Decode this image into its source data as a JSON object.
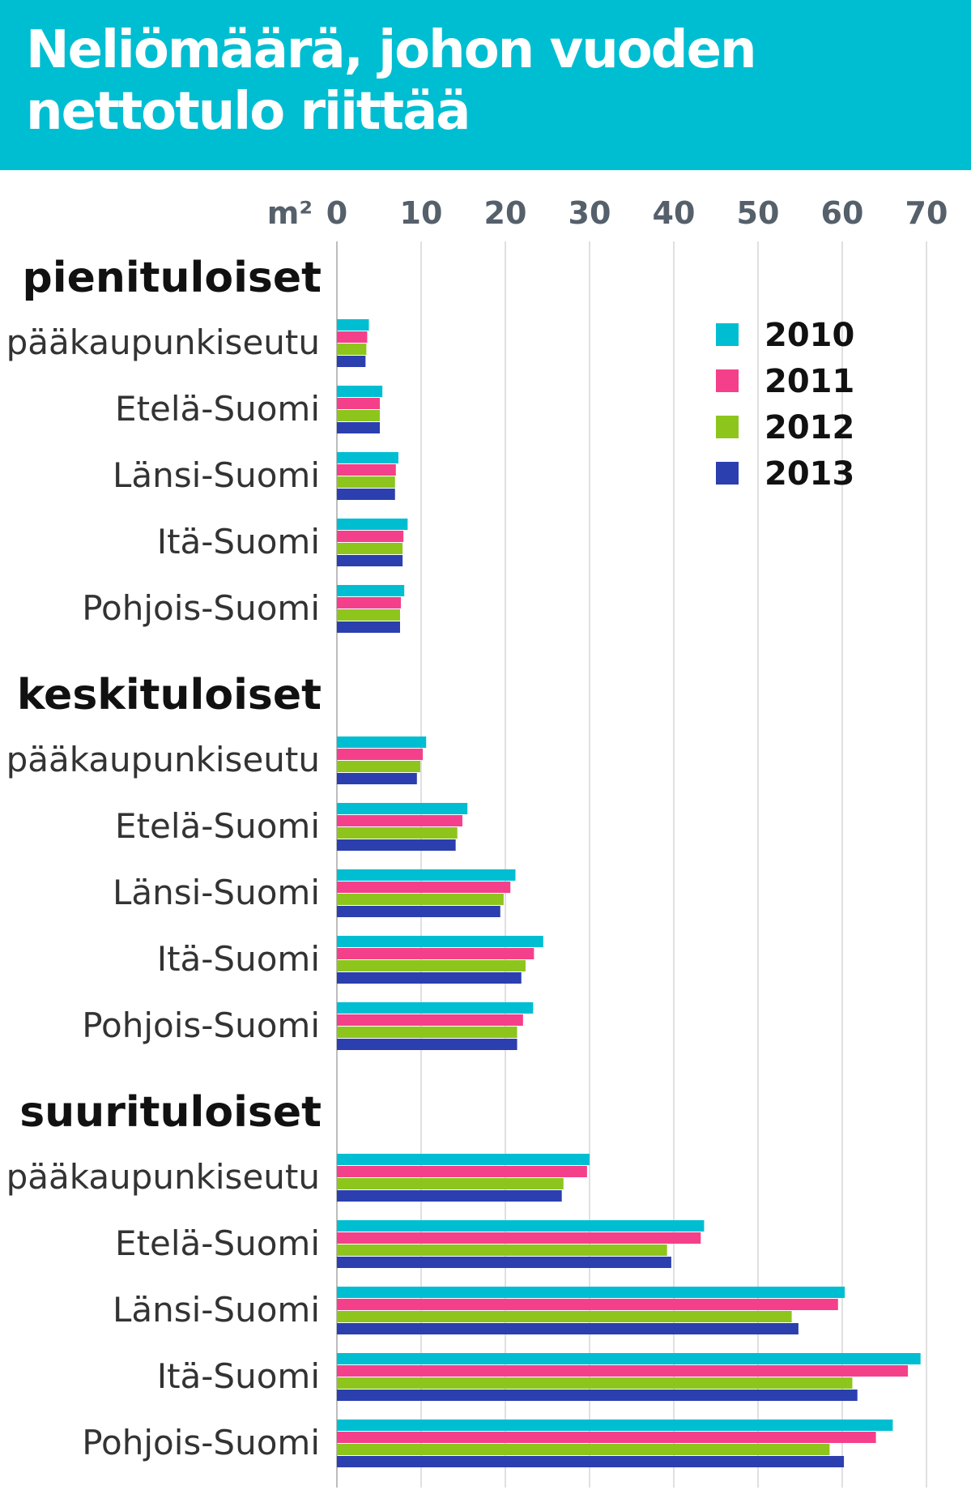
{
  "header": {
    "title_line1": "Neliömäärä, johon vuoden",
    "title_line2": "nettotulo riittää",
    "background_color": "#00bed2"
  },
  "chart_data": {
    "type": "bar",
    "orientation": "horizontal",
    "title": "Neliömäärä, johon vuoden nettotulo riittää",
    "unit_label": "m²",
    "xlim": [
      0,
      70
    ],
    "xticks": [
      "0",
      "10",
      "20",
      "30",
      "40",
      "50",
      "60",
      "70"
    ],
    "grid": true,
    "legend_position": "top-right",
    "series": [
      {
        "name": "2010",
        "color": "#00bed2"
      },
      {
        "name": "2011",
        "color": "#f4408a"
      },
      {
        "name": "2012",
        "color": "#8dc51d"
      },
      {
        "name": "2013",
        "color": "#2b3fae"
      }
    ],
    "groups": [
      {
        "label": "pienituloiset",
        "categories": [
          {
            "label": "pääkaupunkiseutu",
            "values": [
              3.8,
              3.6,
              3.5,
              3.4
            ]
          },
          {
            "label": "Etelä-Suomi",
            "values": [
              5.4,
              5.1,
              5.1,
              5.1
            ]
          },
          {
            "label": "Länsi-Suomi",
            "values": [
              7.3,
              7.0,
              6.9,
              6.9
            ]
          },
          {
            "label": "Itä-Suomi",
            "values": [
              8.4,
              7.9,
              7.8,
              7.8
            ]
          },
          {
            "label": "Pohjois-Suomi",
            "values": [
              8.0,
              7.6,
              7.5,
              7.5
            ]
          }
        ]
      },
      {
        "label": "keskituloiset",
        "categories": [
          {
            "label": "pääkaupunkiseutu",
            "values": [
              10.6,
              10.2,
              9.9,
              9.5
            ]
          },
          {
            "label": "Etelä-Suomi",
            "values": [
              15.5,
              14.9,
              14.3,
              14.1
            ]
          },
          {
            "label": "Länsi-Suomi",
            "values": [
              21.2,
              20.6,
              19.8,
              19.4
            ]
          },
          {
            "label": "Itä-Suomi",
            "values": [
              24.5,
              23.4,
              22.4,
              21.9
            ]
          },
          {
            "label": "Pohjois-Suomi",
            "values": [
              23.3,
              22.1,
              21.4,
              21.4
            ]
          }
        ]
      },
      {
        "label": "suurituloiset",
        "categories": [
          {
            "label": "pääkaupunkiseutu",
            "values": [
              30.0,
              29.7,
              26.9,
              26.7
            ]
          },
          {
            "label": "Etelä-Suomi",
            "values": [
              43.6,
              43.2,
              39.2,
              39.7
            ]
          },
          {
            "label": "Länsi-Suomi",
            "values": [
              60.3,
              59.5,
              54.0,
              54.8
            ]
          },
          {
            "label": "Itä-Suomi",
            "values": [
              69.3,
              67.8,
              61.2,
              61.8
            ]
          },
          {
            "label": "Pohjois-Suomi",
            "values": [
              66.0,
              64.0,
              58.5,
              60.2
            ]
          }
        ]
      }
    ]
  }
}
